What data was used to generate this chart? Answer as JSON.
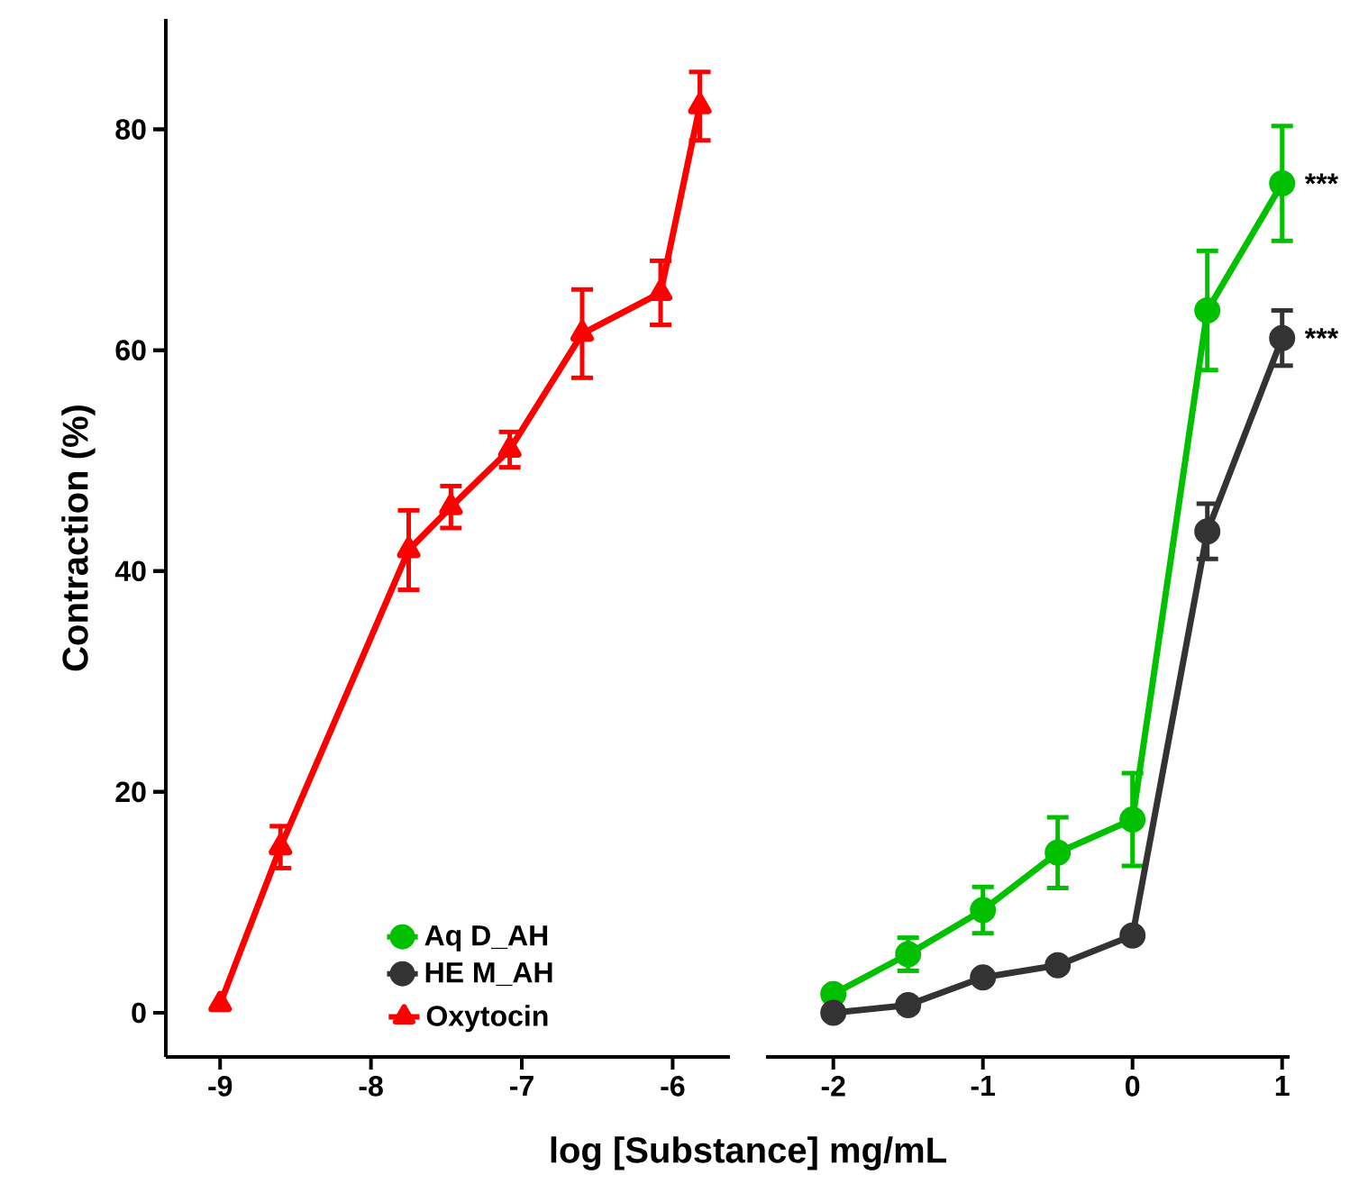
{
  "chart_data": [
    {
      "type": "line",
      "xlabel": "log [Substance] mg/mL",
      "ylabel": "Contraction (%)",
      "xlim": [
        -9.36,
        -5.62
      ],
      "xticks": [
        -9,
        -8,
        -7,
        -6
      ],
      "ylim": [
        -4,
        90
      ],
      "yticks": [
        0,
        20,
        40,
        60,
        80
      ],
      "legend": "bottom right",
      "marker": "triangle",
      "series": [
        {
          "name": "Oxytocin",
          "color": "#ff0000",
          "x": [
            -9,
            -8.6,
            -7.75,
            -7.47,
            -7.08,
            -6.6,
            -6.08,
            -5.82
          ],
          "values": [
            0.8,
            15,
            41.9,
            45.8,
            51,
            61.5,
            65.2,
            82.1
          ],
          "errors": [
            null,
            1.9,
            3.6,
            1.9,
            1.6,
            4,
            2.9,
            3.1
          ]
        }
      ]
    },
    {
      "type": "line",
      "xlim": [
        -2.45,
        1.05
      ],
      "xticks": [
        -2,
        -1,
        0,
        1
      ],
      "yticks": [
        0,
        20,
        40,
        60,
        80
      ],
      "tick_labels": "x",
      "legend": "left",
      "marker": "circle",
      "annotations": [
        {
          "text": "***",
          "x": 1,
          "y": 75.1
        },
        {
          "text": "***",
          "x": 1,
          "y": 61.1
        }
      ],
      "series": [
        {
          "name": "Aq D_AH",
          "color": "#00c000",
          "x": [
            -2,
            -1.5,
            -1,
            -0.5,
            0,
            0.5,
            1
          ],
          "values": [
            1.7,
            5.3,
            9.3,
            14.5,
            17.5,
            63.6,
            75.1
          ],
          "errors": [
            null,
            1.5,
            2.1,
            3.2,
            4.2,
            5.4,
            5.2
          ]
        },
        {
          "name": "HE M_AH",
          "color": "#333333",
          "x": [
            -2,
            -1.5,
            -1,
            -0.5,
            0,
            0.5,
            1
          ],
          "values": [
            0,
            0.7,
            3.2,
            4.3,
            7.0,
            43.6,
            61.1
          ],
          "errors": [
            null,
            null,
            null,
            null,
            null,
            2.5,
            2.5
          ]
        }
      ]
    }
  ]
}
